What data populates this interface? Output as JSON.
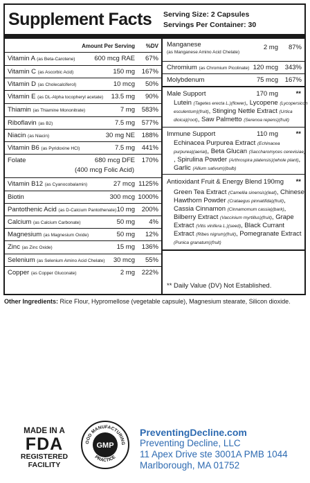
{
  "title": "Supplement Facts",
  "serving_size": "Serving Size: 2 Capsules",
  "servings_per_container": "Servings Per Container: 30",
  "header": {
    "amount": "Amount Per Serving",
    "dv": "%DV"
  },
  "left_rows": [
    {
      "name": "Vitamin A",
      "form": "(as Beta-Carotene)",
      "amount": "600 mcg RAE",
      "dv": "67%"
    },
    {
      "name": "Vitamin C",
      "form": "(as Ascorbic Acid)",
      "amount": "150 mg",
      "dv": "167%"
    },
    {
      "name": "Vitamin D",
      "form": "(as Cholecalciferol)",
      "amount": "10 mcg",
      "dv": "50%"
    },
    {
      "name": "Vitamin E",
      "form": "(as DL-Alpha tocopheryl acetate)",
      "amount": "13.5 mg",
      "dv": "90%"
    },
    {
      "name": "Thiamin",
      "form": "(as Thiamine Mononitrate)",
      "amount": "7 mg",
      "dv": "583%"
    },
    {
      "name": "Riboflavin",
      "form": "(as B2)",
      "amount": "7.5 mg",
      "dv": "577%"
    },
    {
      "name": "Niacin",
      "form": "(as Niacin)",
      "amount": "30 mg NE",
      "dv": "188%"
    },
    {
      "name": "Vitamin B6",
      "form": "(as Pyridoxine HCl)",
      "amount": "7.5 mg",
      "dv": "441%"
    },
    {
      "name": "Folate",
      "form": "",
      "amount": "680 mcg DFE",
      "amount2": "(400 mcg Folic Acid)",
      "dv": "170%"
    },
    {
      "name": "Vitamin B12",
      "form": "(as Cyanocobalamin)",
      "amount": "27 mcg",
      "dv": "1125%"
    },
    {
      "name": "Biotin",
      "form": "",
      "amount": "300 mcg",
      "dv": "1000%"
    },
    {
      "name": "Pantothenic Acid",
      "form": "(as D-Calcium Pantothenate)",
      "amount": "10 mg",
      "dv": "200%"
    },
    {
      "name": "Calcium",
      "form": "(as Calcium Carbonate)",
      "amount": "50 mg",
      "dv": "4%"
    },
    {
      "name": "Magnesium",
      "form": "(as Magnesium Oxide)",
      "amount": "50 mg",
      "dv": "12%"
    },
    {
      "name": "Zinc",
      "form": "(as Zinc Oxide)",
      "amount": "15 mg",
      "dv": "136%"
    },
    {
      "name": "Selenium",
      "form": "(as Selenium Amino Acid Chelate)",
      "amount": "30 mcg",
      "dv": "55%"
    },
    {
      "name": "Copper",
      "form": "(as Copper Gluconate)",
      "amount": "2 mg",
      "dv": "222%"
    }
  ],
  "right": {
    "manganese": {
      "name": "Manganese",
      "form": "(as Manganese Amino Acid Chelate)",
      "amount": "2 mg",
      "dv": "87%"
    },
    "chromium": {
      "name": "Chromium",
      "form": "(as Chromium Picolinate)",
      "amount": "120 mcg",
      "dv": "343%"
    },
    "molybdenum": {
      "name": "Molybdenum",
      "amount": "75 mcg",
      "dv": "167%"
    },
    "male": {
      "name": "Male Support",
      "amount": "170 mg",
      "dv": "**",
      "lines": [
        [
          "Lutein ",
          "(Tagetes erecta L.)(flower)",
          ", Lycopene ",
          "(Lycopersicon"
        ],
        [
          "",
          "esculentum)(fruit)",
          ", Stinging Nettle Extract ",
          "(Urtica"
        ],
        [
          "",
          "dioica)(root)",
          ", Saw Palmetto ",
          "(Serenoa repens)(fruit)"
        ]
      ]
    },
    "immune": {
      "name": "Immune Support",
      "amount": "110 mg",
      "dv": "**",
      "lines": [
        [
          "Echinacea Purpurea Extract ",
          "(Echinacea",
          "",
          ""
        ],
        [
          "",
          "purpurea)(aerial)",
          ", Beta Glucan ",
          "(Saccharomyces cerevisiae)"
        ],
        [
          ", Spirulina Powder ",
          "(Arthrospira platensis)(whole plant)",
          ",",
          ""
        ],
        [
          "Garlic ",
          "(Allium sativum)(bulb)",
          "",
          ""
        ]
      ]
    },
    "antioxidant": {
      "name": "Antioxidant Fruit & Energy Blend 190mg",
      "dv": "**",
      "lines": [
        [
          "Green Tea Extract ",
          "(Camellia sinensis)(leaf)",
          ", Chinese",
          ""
        ],
        [
          "Hawthorn Powder ",
          "(Crataegus pinnatifida)(fruit)",
          ",",
          ""
        ],
        [
          "Cassia Cinnamon ",
          "(Cinnamomum cassia)(bark)",
          ",",
          ""
        ],
        [
          "Bilberry Extract ",
          "(Vaccinium myrtillus)(fruit)",
          ", Grape",
          ""
        ],
        [
          "Extract ",
          "(Vitis vinifera L.)(seed)",
          ", Black Currant",
          ""
        ],
        [
          "Extract ",
          "(Ribes nigrum)(fruit)",
          ", Pomegranate Extract",
          ""
        ],
        [
          "",
          "(Punica granatum)(fruit)",
          "",
          ""
        ]
      ]
    },
    "footnote": "** Daily Value (DV) Not Established."
  },
  "other_label": "Other Ingredients:",
  "other_text": " Rice Flour, Hypromellose (vegetable capsule), Magnesium stearate, Silicon dioxide.",
  "fda": {
    "line1": "MADE IN A",
    "line2": "FDA",
    "line3": "REGISTERED",
    "line4": "FACILITY"
  },
  "gmp": {
    "center": "GMP",
    "top": "MANUFACTURING",
    "left": "GOOD",
    "bottom": "PRACTICE"
  },
  "company": {
    "website": "PreventingDecline.com",
    "name": "Preventing Decline, LLC",
    "address1": "11 Apex Drive ste 3001A PMB 1044",
    "address2": "Marlborough, MA 01752",
    "color": "#2d6ab1"
  }
}
